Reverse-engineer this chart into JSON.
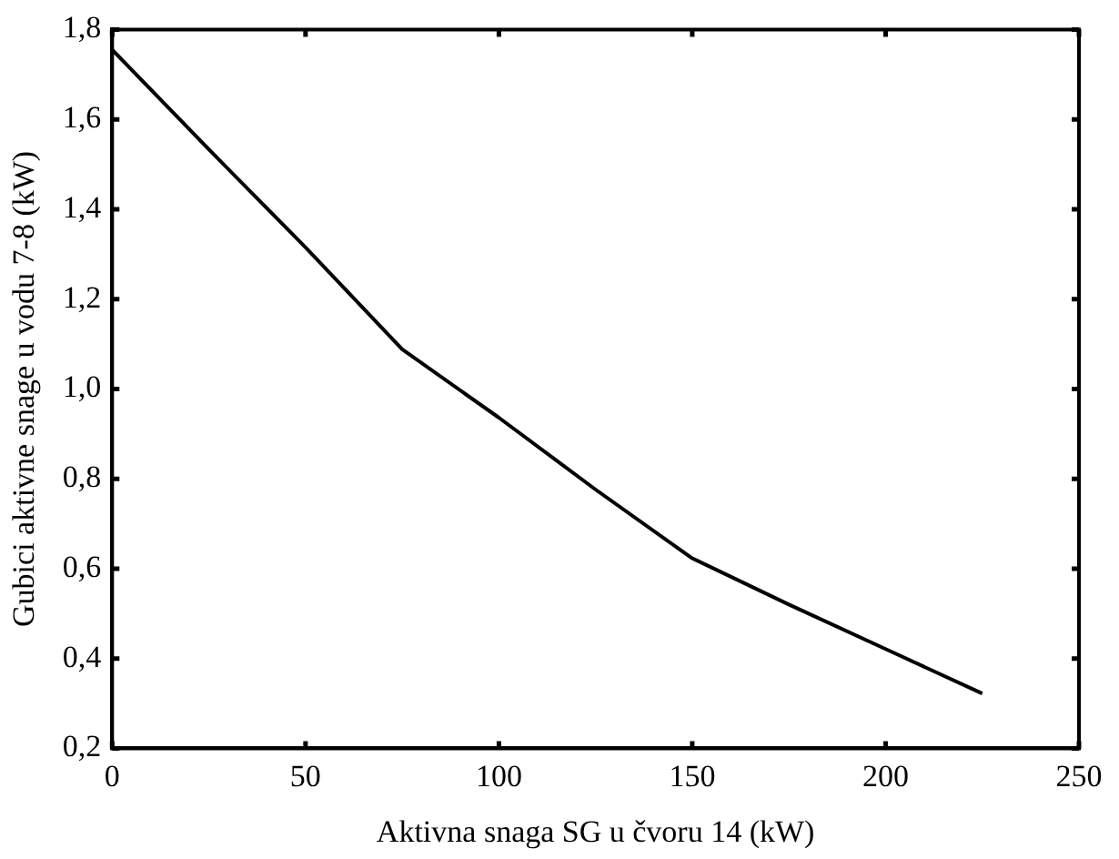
{
  "chart_data": {
    "type": "line",
    "xlabel": "Aktivna snaga SG u čvoru 14 (kW)",
    "ylabel": "Gubici aktivne snage u vodu 7-8 (kW)",
    "x": [
      0,
      25,
      50,
      75,
      100,
      125,
      150,
      175,
      200,
      225
    ],
    "series": [
      {
        "color": "#000000",
        "values": [
          1.755,
          1.533,
          1.315,
          1.088,
          0.936,
          0.776,
          0.623,
          0.52,
          0.421,
          0.322
        ]
      }
    ],
    "xlim": [
      0,
      250
    ],
    "xticks": [
      0,
      50,
      100,
      150,
      200,
      250
    ],
    "ylim": [
      0.2,
      1.8
    ],
    "yticks": [
      {
        "value": 0.2,
        "label": "0,2"
      },
      {
        "value": 0.4,
        "label": "0,4"
      },
      {
        "value": 0.6,
        "label": "0,6"
      },
      {
        "value": 0.8,
        "label": "0,8"
      },
      {
        "value": 1.0,
        "label": "1,0"
      },
      {
        "value": 1.2,
        "label": "1,2"
      },
      {
        "value": 1.4,
        "label": "1,4"
      },
      {
        "value": 1.6,
        "label": "1,6"
      },
      {
        "value": 1.8,
        "label": "1,8"
      }
    ],
    "grid": false,
    "legend": false,
    "marker": "none",
    "line_style": "solid"
  }
}
